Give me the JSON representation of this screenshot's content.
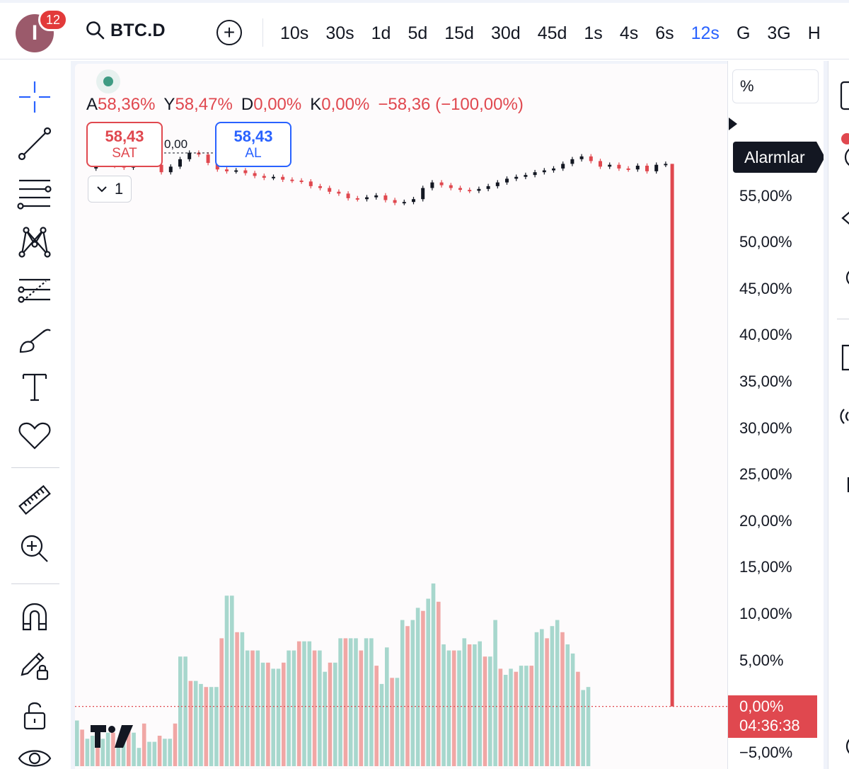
{
  "header": {
    "avatar_letter": "I",
    "notification_count": "12",
    "symbol": "BTC.D",
    "intervals": [
      "10s",
      "30s",
      "1d",
      "5d",
      "15d",
      "30d",
      "45d",
      "1s",
      "4s",
      "6s",
      "12s",
      "G",
      "3G",
      "H"
    ],
    "active_interval": "12s"
  },
  "legend": {
    "open_key": "A",
    "open": "58,36%",
    "high_key": "Y",
    "high": "58,47%",
    "low_key": "D",
    "low": "0,00%",
    "close_key": "K",
    "close": "0,00%",
    "change": "−58,36 (−100,00%)"
  },
  "trade": {
    "sell_price": "58,43",
    "sell_label": "SAT",
    "spread": "0,00",
    "buy_price": "58,43",
    "buy_label": "AL",
    "collapse_count": "1"
  },
  "price_scale": {
    "unit_field": "%",
    "labels": [
      "55,00%",
      "50,00%",
      "45,00%",
      "40,00%",
      "35,00%",
      "30,00%",
      "25,00%",
      "20,00%",
      "15,00%",
      "10,00%",
      "5,00%",
      "−5,00%"
    ],
    "last_value": "0,00%",
    "countdown": "04:36:38"
  },
  "tooltip": {
    "alarms": "Alarmlar"
  },
  "colors": {
    "up": "#131722",
    "down": "#e0484f",
    "vol_up": "#a7d7cd",
    "vol_down": "#f0a7a5",
    "accent": "#2962ff"
  },
  "chart_data": {
    "type": "candlestick",
    "y_axis": {
      "min": -5,
      "max": 60,
      "unit": "%"
    },
    "last_close": 0.0,
    "price_path": [
      57.9,
      58.6,
      58.4,
      58.2,
      58.0,
      58.3,
      58.6,
      58.3,
      57.5,
      58.1,
      58.9,
      59.6,
      59.4,
      58.5,
      57.8,
      57.6,
      57.7,
      57.4,
      57.1,
      56.9,
      57.0,
      56.7,
      56.6,
      56.5,
      56.0,
      55.8,
      55.4,
      55.2,
      54.7,
      54.6,
      54.8,
      55.0,
      54.5,
      54.2,
      54.3,
      54.6,
      55.8,
      56.4,
      56.1,
      55.8,
      55.6,
      55.5,
      55.7,
      56.0,
      56.4,
      56.8,
      57.0,
      57.2,
      57.5,
      57.7,
      57.9,
      58.4,
      58.9,
      59.2,
      58.7,
      58.1,
      58.3,
      57.9,
      57.8,
      58.2,
      57.6,
      58.3,
      58.4
    ],
    "volume": [
      15,
      12,
      9,
      10,
      11,
      9,
      11,
      11,
      8,
      10,
      12,
      11,
      6,
      14,
      8,
      8,
      10,
      9,
      9,
      14,
      36,
      36,
      28,
      28,
      27,
      26,
      26,
      26,
      42,
      56,
      56,
      44,
      44,
      38,
      38,
      38,
      34,
      34,
      32,
      32,
      34,
      38,
      38,
      41,
      41,
      41,
      38,
      38,
      31,
      34,
      34,
      42,
      42,
      42,
      42,
      38,
      42,
      42,
      33,
      27,
      39,
      29,
      29,
      48,
      46,
      48,
      52,
      51,
      55,
      60,
      54,
      40,
      38,
      38,
      38,
      42,
      40,
      40,
      41,
      36,
      36,
      48,
      32,
      30,
      32,
      31,
      33,
      33,
      33,
      44,
      45,
      42,
      46,
      48,
      44,
      40,
      37,
      31,
      25,
      26
    ]
  }
}
